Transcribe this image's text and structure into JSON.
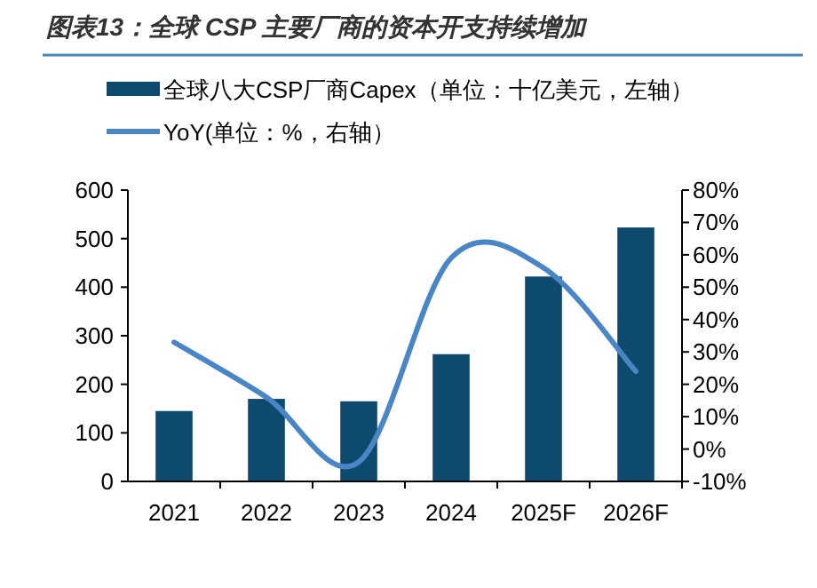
{
  "chart_data": {
    "type": "bar",
    "title": "图表13：全球 CSP 主要厂商的资本开支持续增加",
    "categories": [
      "2021",
      "2022",
      "2023",
      "2024",
      "2025F",
      "2026F"
    ],
    "series": [
      {
        "name": "全球八大CSP厂商Capex（单位：十亿美元，左轴）",
        "color": "#0d4a6e",
        "values": [
          145,
          170,
          165,
          262,
          422,
          523
        ]
      },
      {
        "name": "YoY(单位：%，右轴）",
        "type": "line",
        "axis": "y2",
        "color": "#4a86c6",
        "values": [
          33,
          16,
          -4,
          59,
          56,
          24
        ]
      }
    ],
    "ylim": [
      0,
      600
    ],
    "yticks": [
      0,
      100,
      200,
      300,
      400,
      500,
      600
    ],
    "y2lim": [
      -10,
      80
    ],
    "y2ticks": [
      {
        "value": -10,
        "label": "-10%"
      },
      {
        "value": 0,
        "label": "0%"
      },
      {
        "value": 10,
        "label": "10%"
      },
      {
        "value": 20,
        "label": "20%"
      },
      {
        "value": 30,
        "label": "30%"
      },
      {
        "value": 40,
        "label": "40%"
      },
      {
        "value": 50,
        "label": "50%"
      },
      {
        "value": 60,
        "label": "60%"
      },
      {
        "value": 70,
        "label": "70%"
      },
      {
        "value": 80,
        "label": "80%"
      }
    ],
    "legend": "top left",
    "grid": false
  }
}
